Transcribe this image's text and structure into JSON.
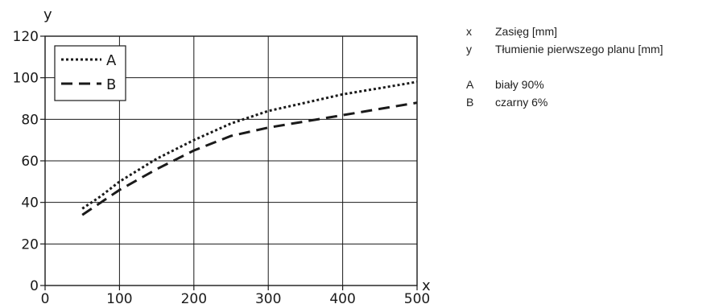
{
  "chart_data": {
    "type": "line",
    "xlim": [
      0,
      500
    ],
    "ylim": [
      0,
      120
    ],
    "x_ticks": [
      "0",
      "100",
      "200",
      "300",
      "400",
      "500"
    ],
    "y_ticks": [
      "0",
      "20",
      "40",
      "60",
      "80",
      "100",
      "120"
    ],
    "x_axis_letter": "x",
    "y_axis_letter": "y",
    "grid": true,
    "legend_position": "top-left",
    "series": [
      {
        "name": "A",
        "style": "dotted",
        "color": "#1a1a1a",
        "x": [
          50,
          75,
          100,
          150,
          200,
          250,
          300,
          350,
          400,
          450,
          500
        ],
        "y": [
          37,
          43,
          50,
          61,
          70,
          78,
          84,
          88,
          92,
          95,
          98
        ]
      },
      {
        "name": "B",
        "style": "dashed",
        "color": "#1a1a1a",
        "x": [
          50,
          75,
          100,
          150,
          200,
          250,
          300,
          350,
          400,
          450,
          500
        ],
        "y": [
          34,
          40,
          46,
          56,
          65,
          72,
          76,
          79,
          82,
          85,
          88
        ]
      }
    ]
  },
  "notes": {
    "x": {
      "key": "x",
      "text": "Zasięg [mm]"
    },
    "y": {
      "key": "y",
      "text": "Tłumienie pierwszego planu [mm]"
    },
    "a": {
      "key": "A",
      "text": "biały 90%"
    },
    "b": {
      "key": "B",
      "text": "czarny 6%"
    }
  }
}
